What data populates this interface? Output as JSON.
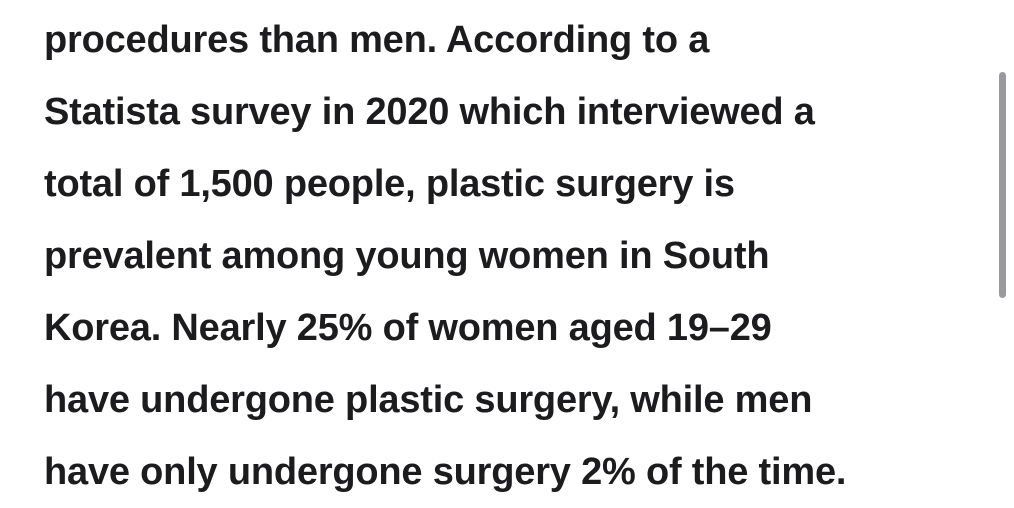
{
  "article": {
    "lines": [
      "procedures than men. According to a",
      "Statista survey in 2020 which interviewed a",
      "total of 1,500 people, plastic surgery is",
      "prevalent among young women in South",
      "Korea. Nearly 25% of women aged 19–29",
      "have undergone plastic surgery, while men",
      "have only undergone surgery 2% of the time."
    ]
  }
}
